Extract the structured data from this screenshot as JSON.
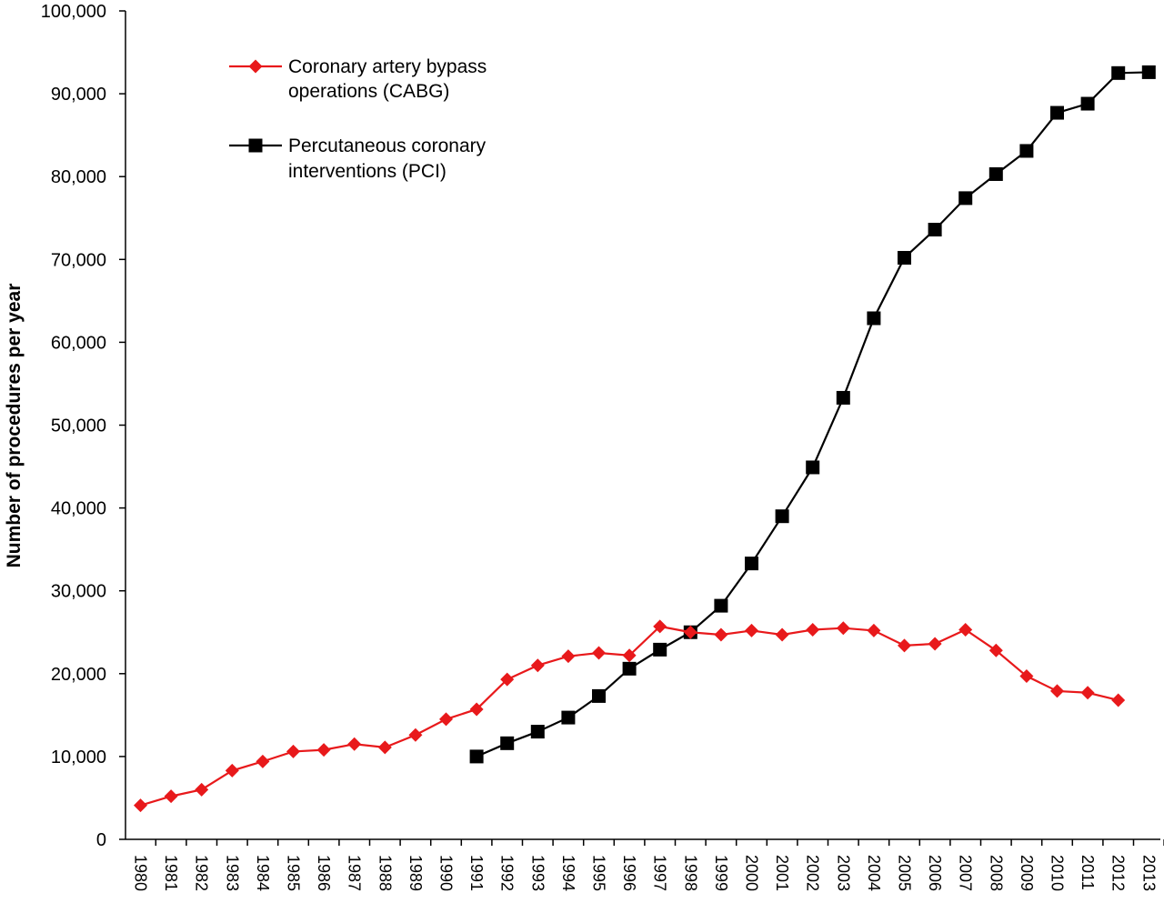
{
  "chart_data": {
    "type": "line",
    "title": "",
    "xlabel": "",
    "ylabel": "Number of procedures per year",
    "ylim": [
      0,
      100000
    ],
    "yticks": [
      "0",
      "10,000",
      "20,000",
      "30,000",
      "40,000",
      "50,000",
      "60,000",
      "70,000",
      "80,000",
      "90,000",
      "100,000"
    ],
    "ytick_values": [
      0,
      10000,
      20000,
      30000,
      40000,
      50000,
      60000,
      70000,
      80000,
      90000,
      100000
    ],
    "categories": [
      "1980",
      "1981",
      "1982",
      "1983",
      "1984",
      "1985",
      "1986",
      "1987",
      "1988",
      "1989",
      "1990",
      "1991",
      "1992",
      "1993",
      "1994",
      "1995",
      "1996",
      "1997",
      "1998",
      "1999",
      "2000",
      "2001",
      "2002",
      "2003",
      "2004",
      "2005",
      "2006",
      "2007",
      "2008",
      "2009",
      "2010",
      "2011",
      "2012",
      "2013"
    ],
    "grid": false,
    "legend_position": "top-left",
    "series": [
      {
        "name": "Coronary artery bypass operations (CABG)",
        "legend_lines": [
          "Coronary artery bypass",
          "operations (CABG)"
        ],
        "color": "#e8191b",
        "marker": "diamond",
        "values": [
          4100,
          5200,
          6000,
          8300,
          9400,
          10600,
          10800,
          11500,
          11100,
          12600,
          14500,
          15700,
          19300,
          21000,
          22100,
          22500,
          22200,
          25700,
          25000,
          24700,
          25200,
          24700,
          25300,
          25500,
          25200,
          23400,
          23600,
          25300,
          22800,
          19700,
          17900,
          17700,
          16800,
          null
        ]
      },
      {
        "name": "Percutaneous coronary interventions (PCI)",
        "legend_lines": [
          "Percutaneous coronary",
          "interventions (PCI)"
        ],
        "color": "#000000",
        "marker": "square",
        "values": [
          null,
          null,
          null,
          null,
          null,
          null,
          null,
          null,
          null,
          null,
          null,
          10000,
          11600,
          13000,
          14700,
          17300,
          20600,
          22900,
          25000,
          28200,
          33300,
          39000,
          44900,
          53300,
          62900,
          70200,
          73600,
          77400,
          80300,
          83100,
          87700,
          88800,
          92500,
          92600
        ]
      }
    ]
  }
}
